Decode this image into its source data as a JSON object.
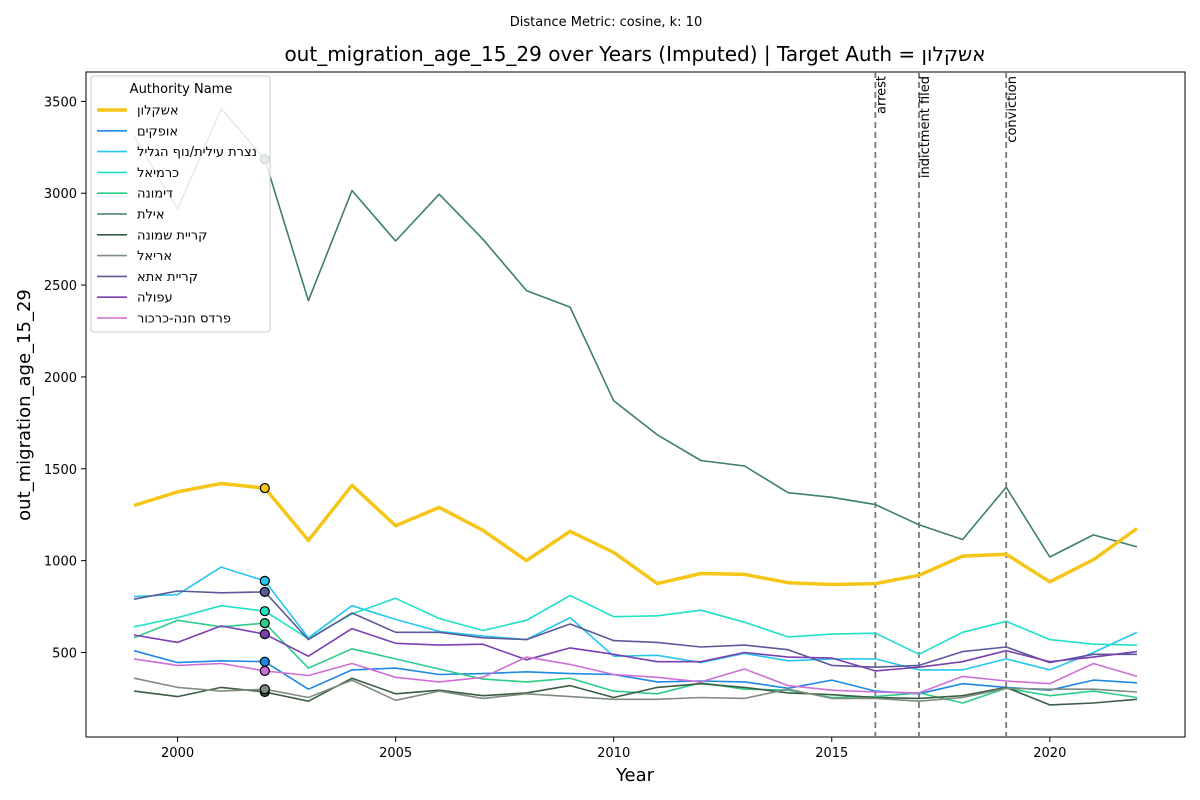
{
  "chart_data": {
    "type": "line",
    "suptitle": "Distance Metric: cosine, k: 10",
    "title": "out_migration_age_15_29 over Years (Imputed) | Target Auth = אשקלון",
    "xlabel": "Year",
    "ylabel": "out_migration_age_15_29",
    "xlim": [
      1997.9,
      2023.1
    ],
    "ylim": [
      40,
      3660
    ],
    "xticks": [
      2000,
      2005,
      2010,
      2015,
      2020
    ],
    "yticks": [
      500,
      1000,
      1500,
      2000,
      2500,
      3000,
      3500
    ],
    "grid": false,
    "legend": {
      "title": "Authority Name",
      "placement": "top-left"
    },
    "x": [
      1999,
      2000,
      2001,
      2002,
      2003,
      2004,
      2005,
      2006,
      2007,
      2008,
      2009,
      2010,
      2011,
      2012,
      2013,
      2014,
      2015,
      2016,
      2017,
      2018,
      2019,
      2020,
      2021,
      2022
    ],
    "marker_year": 2002,
    "events": [
      {
        "year": 2016,
        "label": "arrest"
      },
      {
        "year": 2017,
        "label": "indictment filed"
      },
      {
        "year": 2019,
        "label": "conviction"
      }
    ],
    "series": [
      {
        "name": "אשקלון",
        "color": "#f5c518",
        "width": 3.5,
        "values": [
          1300,
          1375,
          1420,
          1395,
          1110,
          1410,
          1190,
          1290,
          1165,
          1000,
          1160,
          1045,
          875,
          930,
          925,
          880,
          870,
          875,
          920,
          1025,
          1035,
          885,
          1005,
          1175
        ]
      },
      {
        "name": "אופקים",
        "color": "#1e88e5",
        "width": 1.6,
        "values": [
          510,
          445,
          455,
          450,
          300,
          405,
          415,
          380,
          385,
          395,
          385,
          380,
          340,
          345,
          340,
          305,
          350,
          290,
          275,
          330,
          310,
          295,
          350,
          335
        ]
      },
      {
        "name": "נצרת עילית/נוף הגליל",
        "color": "#26c6f0",
        "width": 1.6,
        "values": [
          805,
          815,
          965,
          890,
          580,
          755,
          680,
          615,
          590,
          570,
          690,
          480,
          485,
          445,
          495,
          455,
          465,
          465,
          405,
          405,
          465,
          405,
          500,
          610
        ]
      },
      {
        "name": "כרמיאל",
        "color": "#20e0c8",
        "width": 1.6,
        "values": [
          640,
          690,
          755,
          725,
          575,
          710,
          795,
          685,
          620,
          675,
          810,
          695,
          700,
          730,
          665,
          585,
          600,
          605,
          490,
          610,
          670,
          570,
          545,
          540
        ]
      },
      {
        "name": "דימונה",
        "color": "#2ecc8a",
        "width": 1.6,
        "values": [
          580,
          675,
          640,
          660,
          415,
          520,
          465,
          410,
          355,
          340,
          360,
          290,
          275,
          335,
          300,
          295,
          255,
          260,
          280,
          225,
          305,
          265,
          290,
          255
        ]
      },
      {
        "name": "אילת",
        "color": "#3d7f6a",
        "width": 1.6,
        "values": [
          3310,
          2915,
          3460,
          3185,
          2415,
          3015,
          2740,
          2995,
          2750,
          2470,
          2380,
          1870,
          1685,
          1545,
          1515,
          1370,
          1345,
          1305,
          1195,
          1115,
          1400,
          1020,
          1140,
          1075
        ]
      },
      {
        "name": "קריית שמונה",
        "color": "#3a5e45",
        "width": 1.6,
        "values": [
          290,
          260,
          310,
          285,
          235,
          360,
          275,
          295,
          265,
          280,
          320,
          255,
          310,
          330,
          310,
          280,
          270,
          255,
          250,
          265,
          310,
          215,
          225,
          245
        ]
      },
      {
        "name": "אריאל",
        "color": "#7f8c80",
        "width": 1.6,
        "values": [
          360,
          310,
          290,
          300,
          255,
          350,
          240,
          290,
          250,
          275,
          260,
          245,
          245,
          255,
          250,
          300,
          250,
          250,
          235,
          255,
          305,
          300,
          300,
          285
        ]
      },
      {
        "name": "קריית אתא",
        "color": "#5a5a9a",
        "width": 1.6,
        "values": [
          790,
          835,
          825,
          830,
          570,
          715,
          610,
          610,
          580,
          570,
          655,
          565,
          555,
          530,
          540,
          515,
          430,
          420,
          430,
          505,
          530,
          445,
          490,
          490
        ]
      },
      {
        "name": "עפולה",
        "color": "#7b3fb0",
        "width": 1.6,
        "values": [
          595,
          555,
          645,
          600,
          480,
          630,
          550,
          540,
          545,
          460,
          525,
          490,
          450,
          450,
          500,
          475,
          470,
          400,
          420,
          450,
          510,
          450,
          475,
          505
        ]
      },
      {
        "name": "פרדס חנה-כרכור",
        "color": "#cf6fd6",
        "width": 1.6,
        "values": [
          465,
          430,
          440,
          400,
          375,
          440,
          365,
          340,
          365,
          475,
          435,
          380,
          365,
          340,
          410,
          320,
          295,
          285,
          280,
          370,
          345,
          330,
          440,
          370
        ]
      }
    ]
  }
}
